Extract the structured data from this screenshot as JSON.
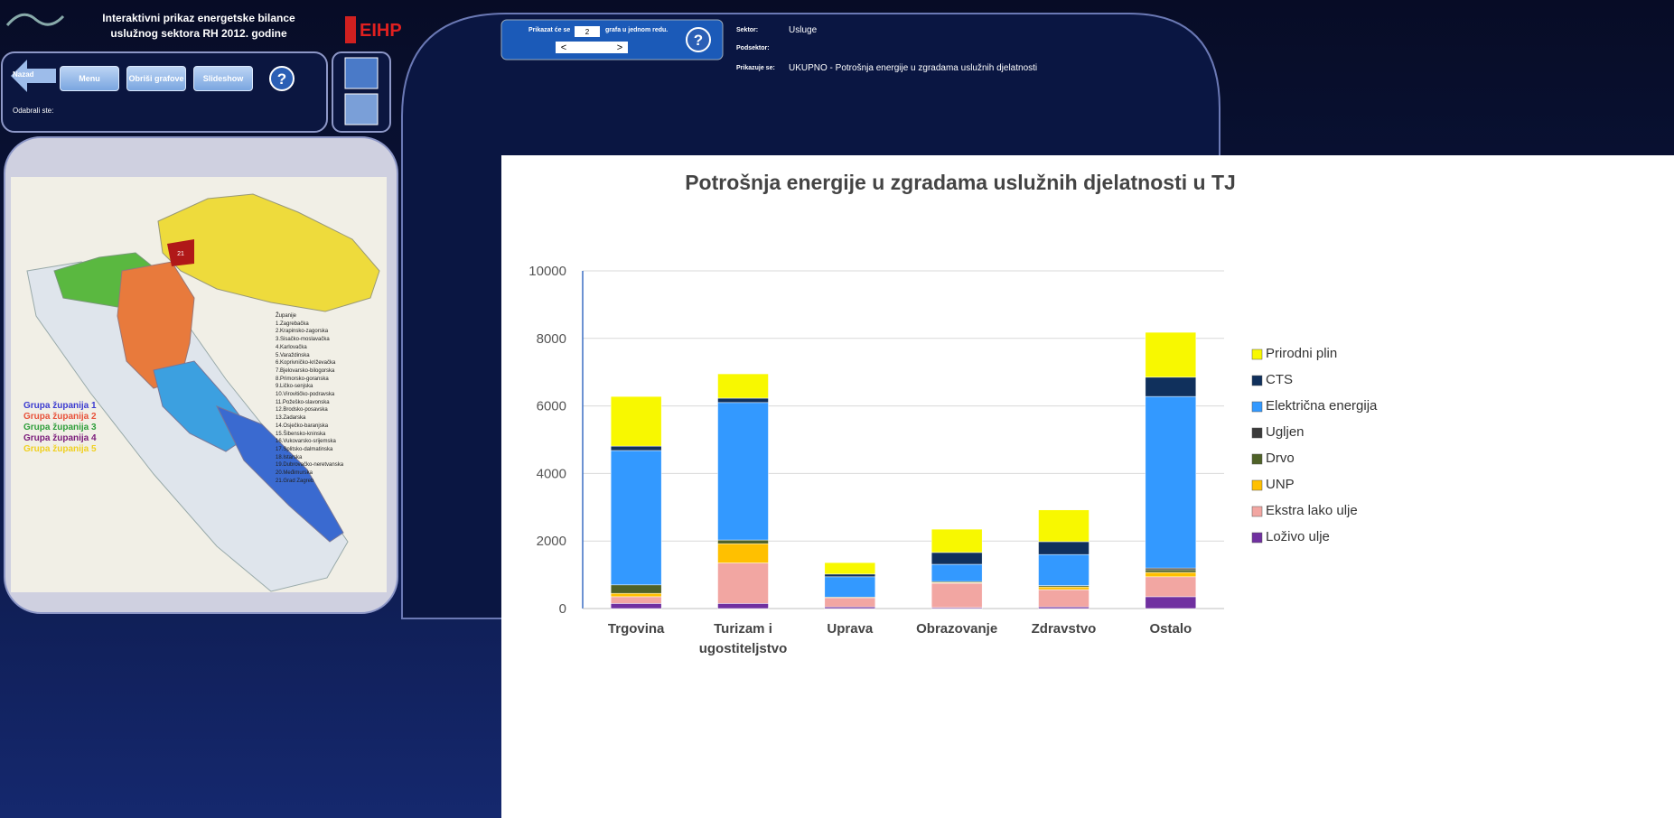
{
  "header": {
    "title_line1": "Interaktivni prikaz energetske bilance",
    "title_line2": "uslužnog sektora RH 2012. godine",
    "logo": "EIHP"
  },
  "nav": {
    "buttons": [
      "Nazad",
      "Menu",
      "Obriši grafove",
      "Slideshow"
    ],
    "help": "?",
    "selected_label": "Odabrali ste:"
  },
  "map": {
    "groups": [
      {
        "name": "Grupa županija 1",
        "color": "#3b3bd0"
      },
      {
        "name": "Grupa županija 2",
        "color": "#e8523a"
      },
      {
        "name": "Grupa županija 3",
        "color": "#2e9e3a"
      },
      {
        "name": "Grupa županija 4",
        "color": "#7a1a7a"
      },
      {
        "name": "Grupa županija 5",
        "color": "#f0d020"
      }
    ],
    "counties_title": "Županije",
    "counties": [
      "1.Zagrebačka",
      "2.Krapinsko-zagorska",
      "3.Sisačko-moslavačka",
      "4.Karlovačka",
      "5.Varaždinska",
      "6.Koprivničko-križevačka",
      "7.Bjelovarsko-bilogorska",
      "8.Primorsko-goranska",
      "9.Ličko-senjska",
      "10.Virovitičko-podravska",
      "11.Požeško-slavonska",
      "12.Brodsko-posavska",
      "13.Zadarska",
      "14.Osječko-baranjska",
      "15.Šibensko-kninska",
      "16.Vukovarsko-srijemska",
      "17.Splitsko-dalmatinska",
      "18.Istarska",
      "19.Dubrovačko-neretvanska",
      "20.Međimurska",
      "21.Grad Zagreb"
    ],
    "marker": "21"
  },
  "controls": {
    "show_prefix": "Prikazat će se",
    "count": "2",
    "show_suffix": "grafa u jednom redu.",
    "prev": "<",
    "next": ">",
    "help": "?"
  },
  "info": {
    "sector_label": "Sektor:",
    "sector": "Usluge",
    "subsector_label": "Podsektor:",
    "showing_label": "Prikazuje se:",
    "showing": "UKUPNO - Potrošnja energije u zgradama uslužnih djelatnosti"
  },
  "chart_data": {
    "type": "stacked_bar",
    "title": "Potrošnja energije u zgradama uslužnih djelatnosti u TJ",
    "categories": [
      "Trgovina",
      "Turizam i ugostiteljstvo",
      "Uprava",
      "Obrazovanje",
      "Zdravstvo",
      "Ostalo"
    ],
    "series": [
      {
        "name": "Loživo ulje",
        "color": "#7030a0",
        "values": [
          150,
          150,
          50,
          30,
          50,
          350
        ]
      },
      {
        "name": "Ekstra lako ulje",
        "color": "#f2a6a2",
        "values": [
          200,
          1200,
          270,
          720,
          510,
          590
        ]
      },
      {
        "name": "UNP",
        "color": "#ffc000",
        "values": [
          100,
          570,
          0,
          20,
          80,
          130
        ]
      },
      {
        "name": "Drvo",
        "color": "#4f6228",
        "values": [
          250,
          110,
          20,
          30,
          40,
          80
        ]
      },
      {
        "name": "Ugljen",
        "color": "#3a3a3a",
        "values": [
          0,
          0,
          0,
          0,
          0,
          50
        ]
      },
      {
        "name": "Električna energija",
        "color": "#3399ff",
        "values": [
          3980,
          4070,
          600,
          510,
          920,
          5080
        ]
      },
      {
        "name": "CTS",
        "color": "#10305c",
        "values": [
          130,
          130,
          80,
          350,
          380,
          570
        ]
      },
      {
        "name": "Prirodni plin",
        "color": "#f8f800",
        "values": [
          1470,
          720,
          340,
          690,
          940,
          1330
        ]
      }
    ],
    "ylim": [
      0,
      10000
    ],
    "yticks": [
      0,
      2000,
      4000,
      6000,
      8000,
      10000
    ],
    "grid": true,
    "legend": "right"
  }
}
